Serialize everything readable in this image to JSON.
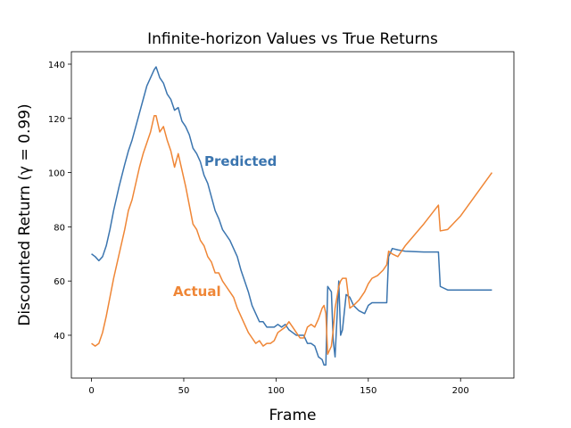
{
  "chart_data": {
    "type": "line",
    "title": "Infinite-horizon Values vs True Returns",
    "x_label": "Frame",
    "y_label": "Discounted Return (γ = 0.99)",
    "annotations": [
      "Predicted",
      "Actual"
    ],
    "x": [
      0,
      2,
      4,
      6,
      8,
      10,
      12,
      15,
      18,
      20,
      22,
      24,
      26,
      28,
      30,
      32,
      34,
      35,
      37,
      39,
      41,
      43,
      45,
      47,
      49,
      51,
      53,
      55,
      57,
      59,
      61,
      63,
      65,
      67,
      69,
      71,
      73,
      75,
      77,
      79,
      81,
      83,
      85,
      87,
      89,
      91,
      93,
      95,
      97,
      99,
      101,
      103,
      105,
      107,
      109,
      111,
      113,
      115,
      117,
      119,
      121,
      123,
      125,
      126,
      127,
      128,
      130,
      131,
      132,
      134,
      135,
      136,
      138,
      140,
      142,
      145,
      148,
      150,
      152,
      155,
      158,
      160,
      161,
      163,
      166,
      170,
      180,
      188,
      189,
      193,
      200,
      217
    ],
    "series": [
      {
        "name": "Predicted",
        "color": "#3b75af",
        "values": [
          70,
          69,
          67.5,
          69,
          73,
          79,
          86,
          95,
          103,
          108,
          112,
          117,
          122,
          127,
          132,
          135,
          138,
          139,
          135,
          133,
          129,
          127,
          123,
          124,
          119,
          117,
          114,
          109,
          107,
          104,
          99,
          96,
          91,
          86,
          83,
          79,
          77,
          75,
          72,
          69,
          64,
          60,
          56,
          51,
          48,
          45,
          45,
          43,
          43,
          43,
          44,
          43,
          44,
          42,
          41,
          40,
          40,
          40,
          37,
          37,
          36,
          32,
          31,
          29,
          29,
          58,
          56,
          38,
          32,
          60,
          40,
          42,
          55,
          54,
          51,
          49,
          48,
          51,
          52,
          52,
          52,
          52,
          69,
          72,
          71.5,
          71,
          70.7,
          70.7,
          58,
          56.7,
          56.7,
          56.7
        ]
      },
      {
        "name": "Actual",
        "color": "#ef8636",
        "values": [
          37,
          36,
          37,
          41,
          47,
          54,
          61,
          70,
          79,
          86,
          90,
          96,
          102,
          107,
          111,
          115,
          121,
          121,
          115,
          117,
          112,
          108,
          102,
          107,
          101,
          95,
          88,
          81,
          79,
          75,
          73,
          69,
          67,
          63,
          63,
          60,
          58,
          56,
          54,
          50,
          47,
          44,
          41,
          39,
          37,
          38,
          36,
          37,
          37,
          38,
          41,
          42,
          43,
          45,
          43,
          41,
          39,
          39,
          43,
          44,
          43,
          46,
          50,
          51,
          48,
          33,
          36,
          42,
          50,
          58,
          60,
          61,
          61,
          50,
          51,
          53,
          56,
          59,
          61,
          62,
          64,
          66,
          71,
          70,
          69,
          73,
          81,
          88,
          78.5,
          79,
          84,
          100
        ]
      }
    ],
    "xlim": [
      -10.9,
      228.9
    ],
    "ylim": [
      24.2,
      144.6
    ],
    "xticks": [
      0,
      50,
      100,
      150,
      200
    ],
    "yticks": [
      40,
      60,
      80,
      100,
      120,
      140
    ]
  }
}
